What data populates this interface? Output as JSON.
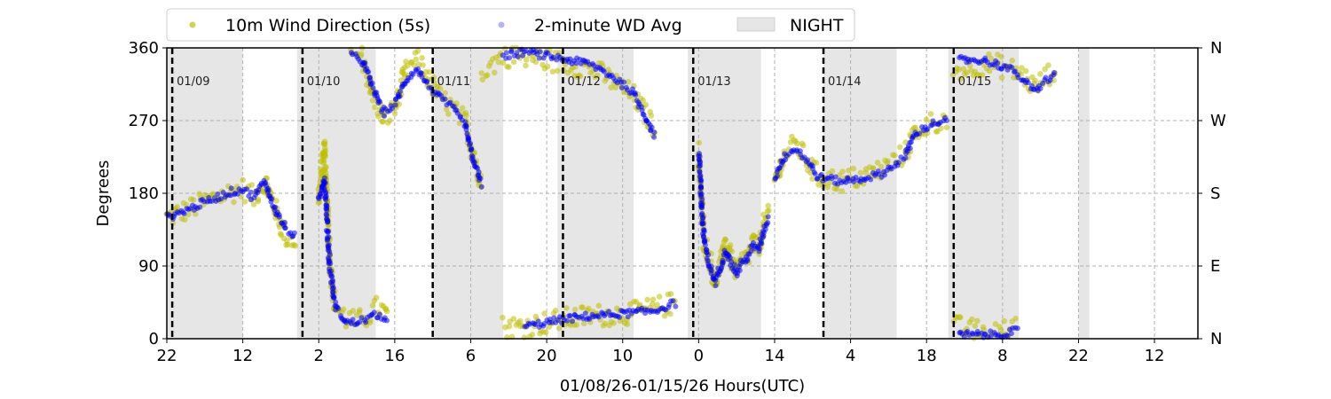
{
  "chart_data": {
    "type": "scatter",
    "xlabel": "01/08/26-01/15/26  Hours(UTC)",
    "ylabel": "Degrees",
    "ylim": [
      0,
      360
    ],
    "yticks": [
      0,
      90,
      180,
      270,
      360
    ],
    "right_ticks": [
      {
        "value": 0,
        "label": "N"
      },
      {
        "value": 90,
        "label": "E"
      },
      {
        "value": 180,
        "label": "S"
      },
      {
        "value": 270,
        "label": "W"
      },
      {
        "value": 360,
        "label": "N"
      }
    ],
    "x_range_hours": [
      0,
      190
    ],
    "x_ticks": [
      {
        "h": 0,
        "label": "22"
      },
      {
        "h": 14,
        "label": "12"
      },
      {
        "h": 28,
        "label": "2"
      },
      {
        "h": 42,
        "label": "16"
      },
      {
        "h": 56,
        "label": "6"
      },
      {
        "h": 70,
        "label": "20"
      },
      {
        "h": 84,
        "label": "10"
      },
      {
        "h": 98,
        "label": "0"
      },
      {
        "h": 112,
        "label": "14"
      },
      {
        "h": 126,
        "label": "4"
      },
      {
        "h": 140,
        "label": "18"
      },
      {
        "h": 154,
        "label": "8"
      },
      {
        "h": 168,
        "label": "22"
      },
      {
        "h": 182,
        "label": "12"
      }
    ],
    "day_markers": [
      {
        "h": 1,
        "label": "01/09"
      },
      {
        "h": 25,
        "label": "01/10"
      },
      {
        "h": 49,
        "label": "01/11"
      },
      {
        "h": 73,
        "label": "01/12"
      },
      {
        "h": 97,
        "label": "01/13"
      },
      {
        "h": 121,
        "label": "01/14"
      },
      {
        "h": 145,
        "label": "01/15"
      }
    ],
    "night_periods": [
      [
        0,
        14
      ],
      [
        24,
        38.5
      ],
      [
        49,
        62
      ],
      [
        72,
        86
      ],
      [
        96,
        109.5
      ],
      [
        121,
        134.5
      ],
      [
        144,
        157
      ],
      [
        168,
        170
      ]
    ],
    "grid": true,
    "legend": {
      "position": "top-left, above plot",
      "entries": [
        {
          "label": "10m Wind Direction (5s)",
          "color": "#bfbf00",
          "marker": "dot"
        },
        {
          "label": "2-minute WD Avg",
          "color": "#0000ff",
          "marker": "dot"
        },
        {
          "label": "NIGHT",
          "color": "#e6e6e6",
          "marker": "patch"
        }
      ]
    },
    "series": [
      {
        "name": "10m Wind Direction (5s)",
        "color": "#bfbf00",
        "spread": 28,
        "segments": [
          [
            [
              0,
              150
            ],
            [
              4,
              160
            ],
            [
              8,
              172
            ],
            [
              12,
              182
            ],
            [
              14,
              185
            ],
            [
              16,
              175
            ],
            [
              18,
              195
            ],
            [
              20,
              160
            ],
            [
              22,
              125
            ],
            [
              24,
              120
            ]
          ],
          [
            [
              28,
              170
            ],
            [
              29,
              240
            ],
            [
              30,
              100
            ],
            [
              31,
              40
            ],
            [
              33,
              25
            ],
            [
              35,
              20
            ],
            [
              37,
              28
            ],
            [
              39,
              40
            ],
            [
              41,
              25
            ]
          ],
          [
            [
              34,
              355
            ],
            [
              36,
              350
            ],
            [
              38,
              300
            ],
            [
              40,
              270
            ],
            [
              42,
              285
            ],
            [
              44,
              330
            ],
            [
              46,
              345
            ],
            [
              48,
              325
            ],
            [
              50,
              300
            ],
            [
              52,
              290
            ],
            [
              55,
              268
            ],
            [
              56,
              240
            ],
            [
              57,
              215
            ],
            [
              58,
              195
            ]
          ],
          [
            [
              62,
              15
            ],
            [
              66,
              15
            ],
            [
              70,
              20
            ],
            [
              74,
              25
            ],
            [
              78,
              28
            ],
            [
              82,
              30
            ],
            [
              86,
              32
            ],
            [
              90,
              38
            ],
            [
              94,
              45
            ]
          ],
          [
            [
              58,
              330
            ],
            [
              62,
              350
            ],
            [
              66,
              350
            ],
            [
              70,
              345
            ],
            [
              74,
              340
            ],
            [
              78,
              335
            ],
            [
              82,
              320
            ],
            [
              86,
              300
            ],
            [
              90,
              260
            ]
          ],
          [
            [
              98,
              230
            ],
            [
              99,
              120
            ],
            [
              100,
              100
            ],
            [
              101,
              70
            ],
            [
              102,
              90
            ],
            [
              103,
              120
            ],
            [
              104,
              100
            ],
            [
              105,
              80
            ],
            [
              106,
              95
            ],
            [
              107,
              100
            ],
            [
              108,
              120
            ],
            [
              109,
              110
            ],
            [
              110,
              140
            ],
            [
              111,
              155
            ]
          ],
          [
            [
              112,
              195
            ],
            [
              114,
              230
            ],
            [
              116,
              240
            ],
            [
              118,
              220
            ],
            [
              120,
              200
            ],
            [
              124,
              195
            ],
            [
              128,
              200
            ],
            [
              132,
              210
            ],
            [
              136,
              230
            ],
            [
              138,
              255
            ],
            [
              140,
              265
            ],
            [
              142,
              270
            ],
            [
              144,
              270
            ]
          ],
          [
            [
              145,
              15
            ],
            [
              149,
              10
            ],
            [
              153,
              8
            ],
            [
              157,
              12
            ]
          ],
          [
            [
              145,
              330
            ],
            [
              147,
              335
            ],
            [
              150,
              340
            ],
            [
              152,
              340
            ],
            [
              155,
              335
            ],
            [
              158,
              325
            ],
            [
              160,
              310
            ],
            [
              162,
              325
            ],
            [
              164,
              335
            ]
          ]
        ]
      },
      {
        "name": "2-minute WD Avg",
        "color": "#0000ff",
        "spread": 9,
        "segments": [
          [
            [
              0,
              150
            ],
            [
              4,
              160
            ],
            [
              8,
              172
            ],
            [
              12,
              182
            ],
            [
              14,
              185
            ],
            [
              16,
              175
            ],
            [
              18,
              195
            ],
            [
              20,
              160
            ],
            [
              22,
              135
            ],
            [
              24,
              125
            ]
          ],
          [
            [
              28,
              170
            ],
            [
              29,
              200
            ],
            [
              30,
              90
            ],
            [
              31,
              40
            ],
            [
              33,
              20
            ],
            [
              35,
              20
            ],
            [
              37,
              25
            ],
            [
              39,
              30
            ],
            [
              41,
              20
            ]
          ],
          [
            [
              34,
              350
            ],
            [
              36,
              345
            ],
            [
              38,
              310
            ],
            [
              40,
              280
            ],
            [
              42,
              290
            ],
            [
              44,
              320
            ],
            [
              46,
              335
            ],
            [
              48,
              315
            ],
            [
              50,
              300
            ],
            [
              52,
              290
            ],
            [
              55,
              265
            ],
            [
              56,
              235
            ],
            [
              57,
              210
            ],
            [
              58,
              190
            ]
          ],
          [
            [
              66,
              15
            ],
            [
              70,
              20
            ],
            [
              74,
              25
            ],
            [
              78,
              28
            ],
            [
              82,
              30
            ],
            [
              86,
              32
            ],
            [
              90,
              35
            ],
            [
              94,
              45
            ]
          ],
          [
            [
              62,
              350
            ],
            [
              66,
              355
            ],
            [
              70,
              350
            ],
            [
              74,
              345
            ],
            [
              78,
              340
            ],
            [
              82,
              325
            ],
            [
              86,
              305
            ],
            [
              90,
              250
            ]
          ],
          [
            [
              98,
              230
            ],
            [
              99,
              120
            ],
            [
              100,
              90
            ],
            [
              101,
              70
            ],
            [
              102,
              90
            ],
            [
              103,
              110
            ],
            [
              104,
              95
            ],
            [
              105,
              80
            ],
            [
              106,
              95
            ],
            [
              107,
              100
            ],
            [
              108,
              115
            ],
            [
              109,
              110
            ],
            [
              110,
              135
            ],
            [
              111,
              150
            ]
          ],
          [
            [
              112,
              200
            ],
            [
              114,
              228
            ],
            [
              116,
              235
            ],
            [
              118,
              220
            ],
            [
              120,
              200
            ],
            [
              124,
              195
            ],
            [
              128,
              198
            ],
            [
              132,
              205
            ],
            [
              136,
              225
            ],
            [
              138,
              255
            ],
            [
              140,
              262
            ],
            [
              142,
              268
            ],
            [
              144,
              270
            ]
          ],
          [
            [
              146,
              5
            ],
            [
              149,
              5
            ],
            [
              153,
              5
            ],
            [
              157,
              10
            ]
          ],
          [
            [
              146,
              345
            ],
            [
              148,
              345
            ],
            [
              150,
              345
            ],
            [
              152,
              342
            ],
            [
              155,
              335
            ],
            [
              158,
              320
            ],
            [
              160,
              305
            ],
            [
              162,
              320
            ],
            [
              164,
              330
            ]
          ]
        ]
      }
    ]
  }
}
